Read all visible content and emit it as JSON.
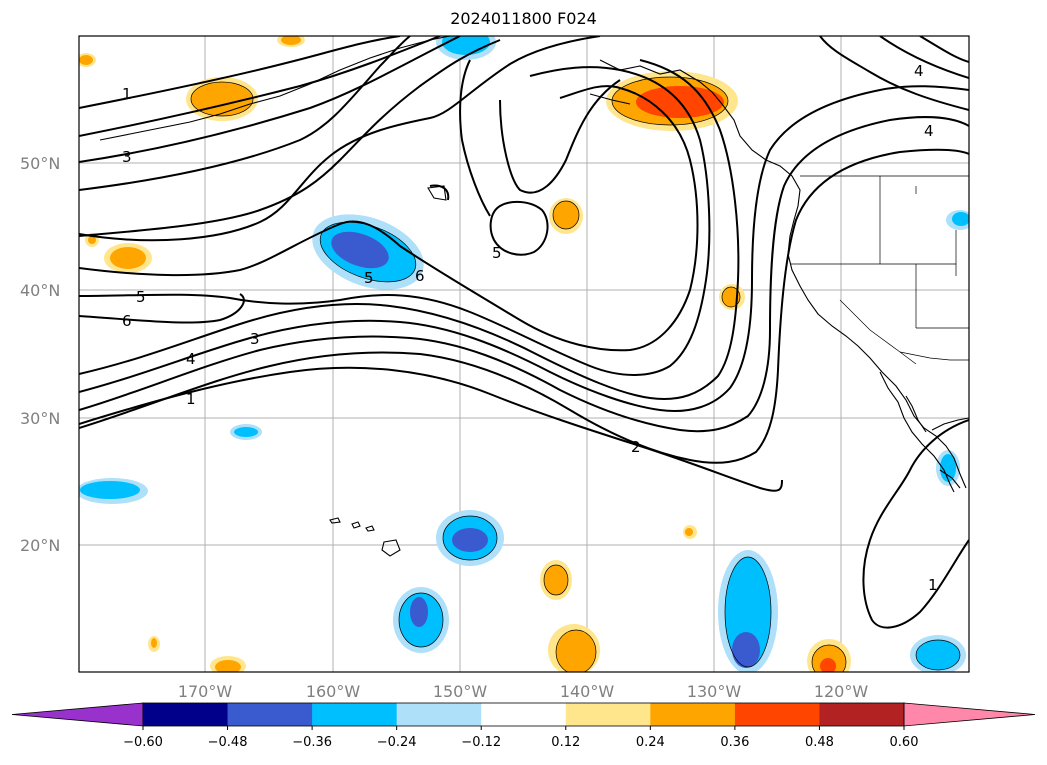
{
  "title": "2024011800 F024",
  "lat_labels": [
    "50°N",
    "40°N",
    "30°N",
    "20°N"
  ],
  "lon_labels": [
    "170°W",
    "160°W",
    "150°W",
    "140°W",
    "130°W",
    "120°W"
  ],
  "colorbar": {
    "ticks": [
      "−0.60",
      "−0.48",
      "−0.36",
      "−0.24",
      "−0.12",
      "0.12",
      "0.24",
      "0.36",
      "0.48",
      "0.60"
    ],
    "colors": [
      "#9932cc",
      "#00008b",
      "#3a5bd0",
      "#00bfff",
      "#aee0fa",
      "#ffffff",
      "#ffe68c",
      "#ffa500",
      "#ff4500",
      "#b22222",
      "#ff88aa"
    ]
  },
  "contour_labels": [
    "1",
    "3",
    "5",
    "6",
    "4",
    "3",
    "1",
    "5",
    "6",
    "5",
    "4",
    "4",
    "2",
    "1"
  ]
}
